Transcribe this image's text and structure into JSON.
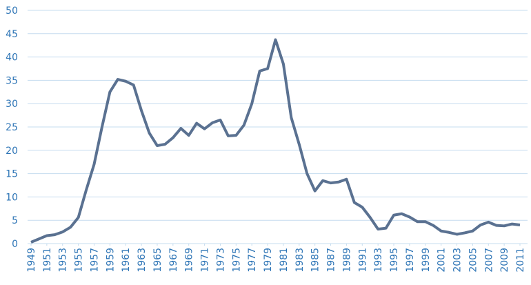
{
  "chart_data": {
    "type": "line",
    "x": [
      1949,
      1950,
      1951,
      1952,
      1953,
      1954,
      1955,
      1956,
      1957,
      1958,
      1959,
      1960,
      1961,
      1962,
      1963,
      1964,
      1965,
      1966,
      1967,
      1968,
      1969,
      1970,
      1971,
      1972,
      1973,
      1974,
      1975,
      1976,
      1977,
      1978,
      1979,
      1980,
      1981,
      1982,
      1983,
      1984,
      1985,
      1986,
      1987,
      1988,
      1989,
      1990,
      1991,
      1992,
      1993,
      1994,
      1995,
      1996,
      1997,
      1998,
      1999,
      2000,
      2001,
      2002,
      2003,
      2004,
      2005,
      2006,
      2007,
      2008,
      2009,
      2010,
      2011
    ],
    "series": [
      {
        "color": "#5a7191",
        "values": [
          0.3,
          1.0,
          1.7,
          1.9,
          2.5,
          3.5,
          5.6,
          11.5,
          17,
          25,
          32.5,
          35.2,
          34.8,
          34,
          28.5,
          23.7,
          21,
          21.3,
          22.7,
          24.7,
          23.2,
          25.8,
          24.6,
          25.9,
          26.5,
          23.1,
          23.2,
          25.4,
          30,
          37,
          37.5,
          43.7,
          38.5,
          27,
          21.3,
          15,
          11.3,
          13.5,
          13,
          13.2,
          13.8,
          8.8,
          7.8,
          5.6,
          3.1,
          3.3,
          6.1,
          6.4,
          5.7,
          4.7,
          4.7,
          3.9,
          2.7,
          2.4,
          2.0,
          2.3,
          2.7,
          4.0,
          4.6,
          3.9,
          3.8,
          4.2,
          4.0
        ]
      }
    ],
    "xlim": [
      1949,
      2011
    ],
    "xticks": [
      1949,
      1951,
      1953,
      1955,
      1957,
      1959,
      1961,
      1963,
      1965,
      1967,
      1969,
      1971,
      1973,
      1975,
      1977,
      1979,
      1981,
      1983,
      1985,
      1987,
      1989,
      1991,
      1993,
      1995,
      1997,
      1999,
      2001,
      2003,
      2005,
      2007,
      2009,
      2011
    ],
    "ylim": [
      0,
      50
    ],
    "yticks": [
      0,
      5,
      10,
      15,
      20,
      25,
      30,
      35,
      40,
      45,
      50
    ],
    "grid": true
  }
}
